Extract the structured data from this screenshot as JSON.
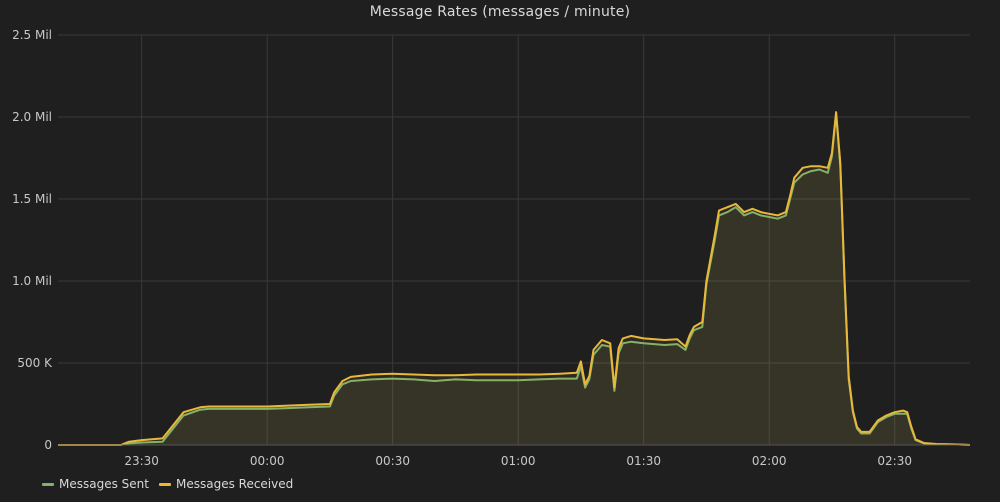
{
  "panel": {
    "title": "Message Rates (messages / minute)"
  },
  "legend": [
    {
      "name": "Messages Sent",
      "color": "#7eb26d"
    },
    {
      "name": "Messages Received",
      "color": "#eab839"
    }
  ],
  "chart_data": {
    "type": "area",
    "title": "Message Rates (messages / minute)",
    "xlabel": "",
    "ylabel": "",
    "ylim": [
      0,
      2500000
    ],
    "yticks": [
      {
        "value": 0,
        "label": "0"
      },
      {
        "value": 500000,
        "label": "500 K"
      },
      {
        "value": 1000000,
        "label": "1.0 Mil"
      },
      {
        "value": 1500000,
        "label": "1.5 Mil"
      },
      {
        "value": 2000000,
        "label": "2.0 Mil"
      },
      {
        "value": 2500000,
        "label": "2.5 Mil"
      }
    ],
    "xlim": [
      "23:10",
      "02:48"
    ],
    "xticks": [
      "23:30",
      "00:00",
      "00:30",
      "01:00",
      "01:30",
      "02:00",
      "02:30"
    ],
    "grid": true,
    "legend_position": "bottom-left",
    "x": [
      "23:10",
      "23:15",
      "23:20",
      "23:25",
      "23:27",
      "23:30",
      "23:35",
      "23:40",
      "23:44",
      "23:46",
      "23:50",
      "23:55",
      "00:00",
      "00:05",
      "00:10",
      "00:15",
      "00:16",
      "00:18",
      "00:20",
      "00:25",
      "00:30",
      "00:35",
      "00:40",
      "00:45",
      "00:50",
      "00:55",
      "01:00",
      "01:05",
      "01:10",
      "01:14",
      "01:15",
      "01:16",
      "01:17",
      "01:18",
      "01:20",
      "01:22",
      "01:23",
      "01:24",
      "01:25",
      "01:27",
      "01:30",
      "01:35",
      "01:38",
      "01:40",
      "01:41",
      "01:42",
      "01:44",
      "01:45",
      "01:47",
      "01:48",
      "01:50",
      "01:52",
      "01:54",
      "01:56",
      "01:58",
      "02:00",
      "02:02",
      "02:04",
      "02:05",
      "02:06",
      "02:08",
      "02:10",
      "02:12",
      "02:14",
      "02:15",
      "02:16",
      "02:17",
      "02:18",
      "02:19",
      "02:20",
      "02:21",
      "02:22",
      "02:24",
      "02:26",
      "02:28",
      "02:30",
      "02:32",
      "02:33",
      "02:34",
      "02:35",
      "02:37",
      "02:40",
      "02:45",
      "02:48"
    ],
    "series": [
      {
        "name": "Messages Sent",
        "color": "#7eb26d",
        "values": [
          0,
          0,
          0,
          0,
          10000,
          15000,
          20000,
          180000,
          215000,
          220000,
          220000,
          220000,
          220000,
          225000,
          230000,
          235000,
          300000,
          370000,
          390000,
          400000,
          405000,
          400000,
          390000,
          400000,
          395000,
          395000,
          395000,
          400000,
          405000,
          405000,
          480000,
          350000,
          400000,
          550000,
          610000,
          600000,
          330000,
          560000,
          620000,
          630000,
          620000,
          610000,
          615000,
          580000,
          650000,
          700000,
          720000,
          980000,
          1250000,
          1400000,
          1420000,
          1450000,
          1400000,
          1420000,
          1400000,
          1390000,
          1380000,
          1400000,
          1500000,
          1600000,
          1650000,
          1670000,
          1680000,
          1660000,
          1760000,
          2020000,
          1700000,
          1000000,
          400000,
          200000,
          100000,
          70000,
          70000,
          140000,
          170000,
          190000,
          190000,
          190000,
          100000,
          30000,
          10000,
          5000,
          3000,
          0
        ]
      },
      {
        "name": "Messages Received",
        "color": "#eab839",
        "values": [
          0,
          0,
          0,
          0,
          20000,
          30000,
          40000,
          200000,
          230000,
          235000,
          235000,
          235000,
          235000,
          240000,
          245000,
          250000,
          320000,
          390000,
          415000,
          430000,
          435000,
          430000,
          425000,
          425000,
          430000,
          430000,
          430000,
          430000,
          435000,
          440000,
          510000,
          370000,
          420000,
          580000,
          640000,
          620000,
          350000,
          590000,
          650000,
          665000,
          650000,
          640000,
          645000,
          600000,
          670000,
          720000,
          750000,
          1000000,
          1280000,
          1430000,
          1450000,
          1470000,
          1420000,
          1440000,
          1420000,
          1410000,
          1400000,
          1420000,
          1520000,
          1630000,
          1690000,
          1700000,
          1700000,
          1690000,
          1780000,
          2030000,
          1720000,
          1020000,
          420000,
          210000,
          110000,
          80000,
          80000,
          150000,
          180000,
          200000,
          210000,
          200000,
          110000,
          35000,
          12000,
          6000,
          3000,
          0
        ]
      }
    ]
  }
}
